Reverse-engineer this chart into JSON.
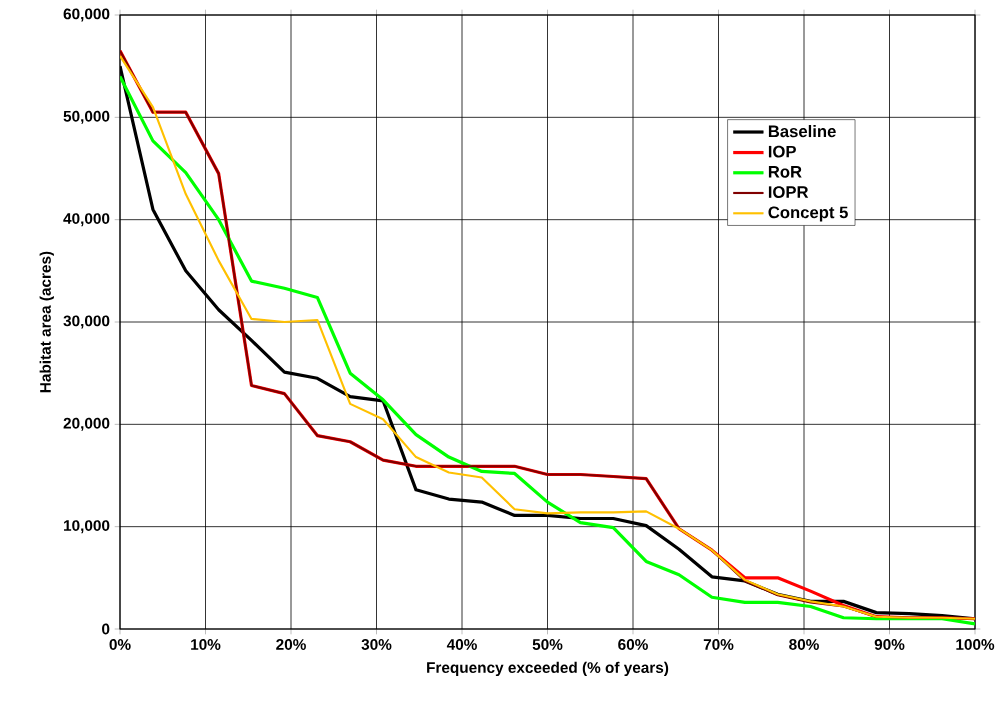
{
  "chart_data": {
    "type": "line",
    "xlabel": "Frequency exceeded (% of years)",
    "ylabel": "Habitat area (acres)",
    "x": [
      0,
      3.85,
      7.69,
      11.54,
      15.38,
      19.23,
      23.08,
      26.92,
      30.77,
      34.62,
      38.46,
      42.31,
      46.15,
      50,
      53.85,
      57.69,
      61.54,
      65.38,
      69.23,
      73.08,
      76.92,
      80.77,
      84.62,
      88.46,
      92.31,
      96.15,
      100
    ],
    "series": [
      {
        "name": "Baseline",
        "color": "#000000",
        "values": [
          55000,
          41000,
          35000,
          31200,
          28200,
          25100,
          24500,
          22700,
          22300,
          13600,
          12700,
          12400,
          11100,
          11100,
          10800,
          10800,
          10100,
          7800,
          5100,
          4700,
          3400,
          2700,
          2700,
          1600,
          1500,
          1300,
          1000
        ]
      },
      {
        "name": "IOP",
        "color": "#ff0000",
        "values": [
          56500,
          50500,
          50500,
          44500,
          23800,
          23000,
          18900,
          18300,
          16500,
          15900,
          15900,
          15900,
          15900,
          15100,
          15100,
          14900,
          14700,
          9800,
          7700,
          5000,
          5000,
          3700,
          2300,
          1200,
          1100,
          1100,
          1000
        ]
      },
      {
        "name": "RoR",
        "color": "#00ff00",
        "values": [
          54000,
          47700,
          44600,
          40000,
          34000,
          33300,
          32400,
          25000,
          22400,
          19000,
          16800,
          15400,
          15200,
          12400,
          10400,
          9900,
          6600,
          5300,
          3100,
          2600,
          2600,
          2200,
          1100,
          1000,
          1000,
          1000,
          500
        ]
      },
      {
        "name": "IOPR",
        "color": "#800000",
        "values": [
          56500,
          50500,
          50500,
          44500,
          23800,
          23000,
          18900,
          18300,
          16500,
          15900,
          15900,
          15900,
          15900,
          15100,
          15100,
          14900,
          14700,
          9800,
          7700,
          4700,
          3300,
          2600,
          2200,
          1200,
          1100,
          1100,
          1000
        ]
      },
      {
        "name": "Concept 5",
        "color": "#ffc000",
        "values": [
          56000,
          51000,
          42500,
          36000,
          30300,
          30000,
          30200,
          22000,
          20500,
          16800,
          15300,
          14800,
          11700,
          11300,
          11400,
          11400,
          11500,
          9800,
          7700,
          4800,
          3400,
          2700,
          2200,
          1200,
          1100,
          1100,
          1000
        ]
      }
    ],
    "xlim": [
      0,
      100
    ],
    "xticks": [
      {
        "value": 0,
        "label": "0%"
      },
      {
        "value": 10,
        "label": "10%"
      },
      {
        "value": 20,
        "label": "20%"
      },
      {
        "value": 30,
        "label": "30%"
      },
      {
        "value": 40,
        "label": "40%"
      },
      {
        "value": 50,
        "label": "50%"
      },
      {
        "value": 60,
        "label": "60%"
      },
      {
        "value": 70,
        "label": "70%"
      },
      {
        "value": 80,
        "label": "80%"
      },
      {
        "value": 90,
        "label": "90%"
      },
      {
        "value": 100,
        "label": "100%"
      }
    ],
    "ylim": [
      0,
      60000
    ],
    "yticks": [
      0,
      {
        "value": 10000,
        "label": "10,000"
      },
      {
        "value": 20000,
        "label": "20,000"
      },
      {
        "value": 30000,
        "label": "30,000"
      },
      {
        "value": 40000,
        "label": "40,000"
      },
      {
        "value": 50000,
        "label": "50,000"
      },
      {
        "value": 60000,
        "label": "60,000"
      }
    ],
    "grid": true,
    "legend": "top right",
    "marker": "none",
    "line_style": "solid"
  }
}
